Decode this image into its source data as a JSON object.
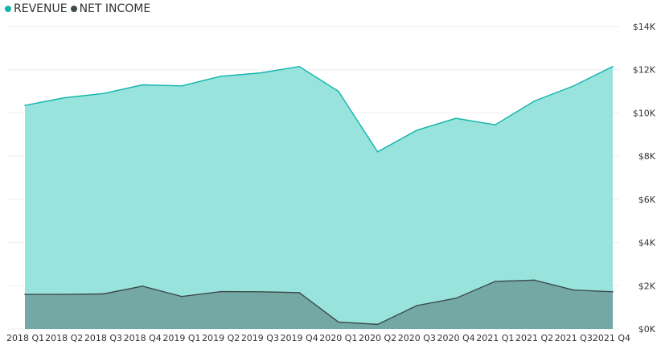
{
  "legend": {
    "items": [
      {
        "label": "REVENUE",
        "color": "#12B5AD"
      },
      {
        "label": "NET INCOME",
        "color": "#3D4B4C"
      }
    ]
  },
  "chart_data": {
    "type": "area",
    "categories": [
      "2018 Q1",
      "2018 Q2",
      "2018 Q3",
      "2018 Q4",
      "2019 Q1",
      "2019 Q2",
      "2019 Q3",
      "2019 Q4",
      "2020 Q1",
      "2020 Q2",
      "2020 Q3",
      "2020 Q4",
      "2021 Q1",
      "2021 Q2",
      "2021 Q3",
      "2021 Q4"
    ],
    "series": [
      {
        "name": "REVENUE",
        "color": "#12B5AD",
        "fill": "#98E3DC",
        "values": [
          10350,
          10700,
          10900,
          11300,
          11250,
          11700,
          11850,
          12150,
          11000,
          8200,
          9200,
          9750,
          9450,
          10550,
          11250,
          12150
        ]
      },
      {
        "name": "NET INCOME",
        "color": "#3D4B4C",
        "fill": "#74A8A4",
        "values": [
          1600,
          1600,
          1620,
          1980,
          1500,
          1730,
          1720,
          1680,
          320,
          210,
          1080,
          1420,
          2200,
          2260,
          1800,
          1720
        ]
      }
    ],
    "y_ticks": [
      "$0K",
      "$2K",
      "$4K",
      "$6K",
      "$8K",
      "$10K",
      "$12K",
      "$14K"
    ],
    "ylim": [
      0,
      14000
    ],
    "grid": true,
    "legend_position": "top-left"
  }
}
